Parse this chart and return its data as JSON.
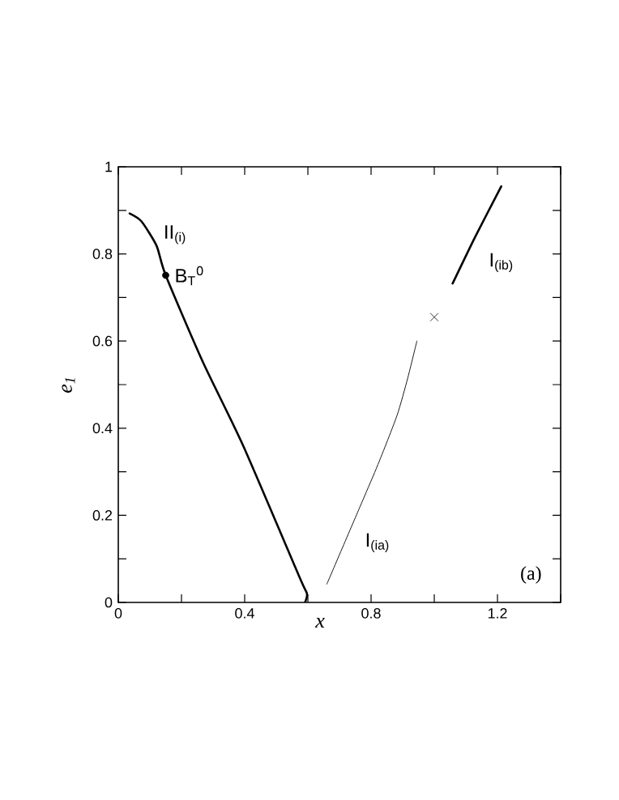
{
  "chart_data": {
    "type": "line",
    "xlabel": "x",
    "ylabel": "e$_{1}$",
    "xlim": [
      0,
      1.4
    ],
    "ylim": [
      0,
      1
    ],
    "xticks": [
      0,
      {
        "value": 0.2,
        "label": null
      },
      0.4,
      {
        "value": 0.6,
        "label": null
      },
      0.8,
      {
        "value": 1.0,
        "label": null
      },
      1.2,
      {
        "value": 1.4,
        "label": null
      }
    ],
    "yticks": [
      0,
      {
        "value": 0.1,
        "label": null
      },
      0.2,
      {
        "value": 0.3,
        "label": null
      },
      0.4,
      {
        "value": 0.5,
        "label": null
      },
      0.6,
      {
        "value": 0.7,
        "label": null
      },
      0.8,
      {
        "value": 0.9,
        "label": null
      },
      1
    ],
    "series": [
      {
        "color": "#000000",
        "x": [
          0.036,
          0.073,
          0.121,
          0.15,
          0.267,
          0.395,
          0.574,
          0.597,
          0.591
        ],
        "values": [
          0.893,
          0.875,
          0.819,
          0.751,
          0.553,
          0.36,
          0.057,
          0.02,
          0
        ]
      },
      {
        "color": "#000000",
        "x": [
          0.66,
          0.771,
          0.822,
          0.882,
          0.916,
          0.945
        ],
        "values": [
          0.042,
          0.23,
          0.317,
          0.429,
          0.515,
          0.6
        ]
      },
      {
        "color": "#000000",
        "x": [
          1.058,
          1.13,
          1.212
        ],
        "values": [
          0.732,
          0.84,
          0.955
        ]
      },
      {
        "type": "scatter",
        "marker": "circle",
        "color": "#000000",
        "x": [
          0.15
        ],
        "values": [
          0.751
        ]
      },
      {
        "type": "scatter",
        "marker": "cross",
        "color": "#000000",
        "x": [
          1.0
        ],
        "values": [
          0.655
        ]
      }
    ],
    "annotations": [
      {
        "text": "II$_{(i)}$",
        "x": 0.115,
        "y": 0.844
      },
      {
        "text": "B$_{T}$$^{0}$",
        "x": 0.15,
        "y": 0.75
      },
      "I$_{(ib)}$",
      "I$_{(ia)}$",
      "(a)"
    ],
    "marker": "none",
    "line_style": "solid"
  }
}
